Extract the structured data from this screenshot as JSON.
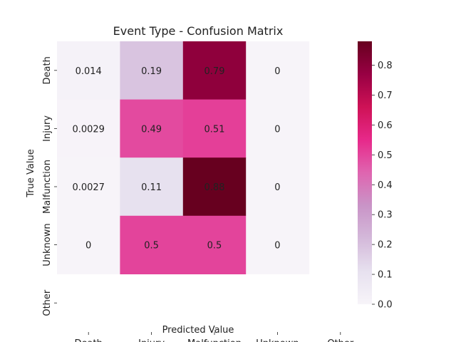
{
  "chart_data": {
    "type": "heatmap",
    "title": "Event Type - Confusion Matrix",
    "xlabel": "Predicted Value",
    "ylabel": "True Value",
    "x_categories": [
      "Death",
      "Injury",
      "Malfunction",
      "Unknown",
      "Other"
    ],
    "y_categories": [
      "Death",
      "Injury",
      "Malfunction",
      "Unknown",
      "Other"
    ],
    "cells": [
      [
        {
          "value": 0.014,
          "label": "0.014"
        },
        {
          "value": 0.19,
          "label": "0.19"
        },
        {
          "value": 0.79,
          "label": "0.79"
        },
        {
          "value": 0,
          "label": "0"
        },
        null
      ],
      [
        {
          "value": 0.0029,
          "label": "0.0029"
        },
        {
          "value": 0.49,
          "label": "0.49"
        },
        {
          "value": 0.51,
          "label": "0.51"
        },
        {
          "value": 0,
          "label": "0"
        },
        null
      ],
      [
        {
          "value": 0.0027,
          "label": "0.0027"
        },
        {
          "value": 0.11,
          "label": "0.11"
        },
        {
          "value": 0.88,
          "label": "0.88"
        },
        {
          "value": 0,
          "label": "0"
        },
        null
      ],
      [
        {
          "value": 0,
          "label": "0"
        },
        {
          "value": 0.5,
          "label": "0.5"
        },
        {
          "value": 0.5,
          "label": "0.5"
        },
        {
          "value": 0,
          "label": "0"
        },
        null
      ],
      [
        null,
        null,
        null,
        null,
        null
      ]
    ],
    "colorbar": {
      "min": 0.0,
      "max": 0.88,
      "ticks": [
        "0.0",
        "0.1",
        "0.2",
        "0.3",
        "0.4",
        "0.5",
        "0.6",
        "0.7",
        "0.8"
      ],
      "colormap": "PuRd",
      "colors": [
        "#f7f4f9",
        "#e7e1ef",
        "#d4b9da",
        "#c994c7",
        "#df65b0",
        "#e7298a",
        "#ce1256",
        "#980043",
        "#67001f"
      ]
    },
    "grid": false,
    "legend": "colorbar-right"
  }
}
